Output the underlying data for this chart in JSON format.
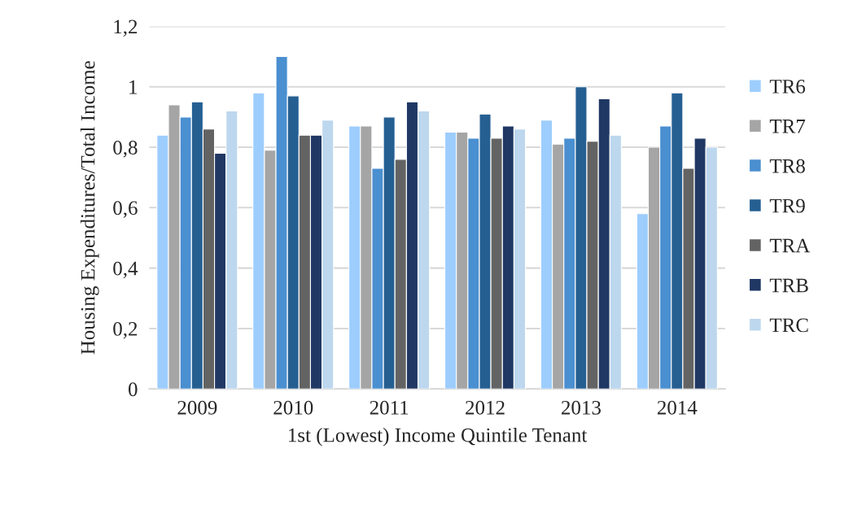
{
  "chart_data": {
    "type": "bar",
    "xlabel": "1st (Lowest) Income Quintile Tenant",
    "ylabel": "Housing Expenditures/Total Income",
    "categories": [
      "2009",
      "2010",
      "2011",
      "2012",
      "2013",
      "2014"
    ],
    "series": [
      {
        "name": "TR6",
        "color": "#9dcdfd",
        "values": [
          0.84,
          0.98,
          0.87,
          0.85,
          0.89,
          0.58
        ]
      },
      {
        "name": "TR7",
        "color": "#a5a5a5",
        "values": [
          0.94,
          0.79,
          0.87,
          0.85,
          0.81,
          0.8
        ]
      },
      {
        "name": "TR8",
        "color": "#4a8fd0",
        "values": [
          0.9,
          1.1,
          0.73,
          0.83,
          0.83,
          0.87
        ]
      },
      {
        "name": "TR9",
        "color": "#255f92",
        "values": [
          0.95,
          0.97,
          0.9,
          0.91,
          1.0,
          0.98
        ]
      },
      {
        "name": "TRA",
        "color": "#636363",
        "values": [
          0.86,
          0.84,
          0.76,
          0.83,
          0.82,
          0.73
        ]
      },
      {
        "name": "TRB",
        "color": "#203864",
        "values": [
          0.78,
          0.84,
          0.95,
          0.87,
          0.96,
          0.83
        ]
      },
      {
        "name": "TRC",
        "color": "#bdd7ee",
        "values": [
          0.92,
          0.89,
          0.92,
          0.86,
          0.84,
          0.8
        ]
      }
    ],
    "ylim": [
      0,
      1.2
    ],
    "yticks": [
      0,
      {
        "value": 0.2,
        "label": "0,2"
      },
      {
        "value": 0.4,
        "label": "0,4"
      },
      {
        "value": 0.6,
        "label": "0,6"
      },
      {
        "value": 0.8,
        "label": "0,8"
      },
      1,
      {
        "value": 1.2,
        "label": "1,2"
      }
    ],
    "grid": "y",
    "legend": "right"
  }
}
